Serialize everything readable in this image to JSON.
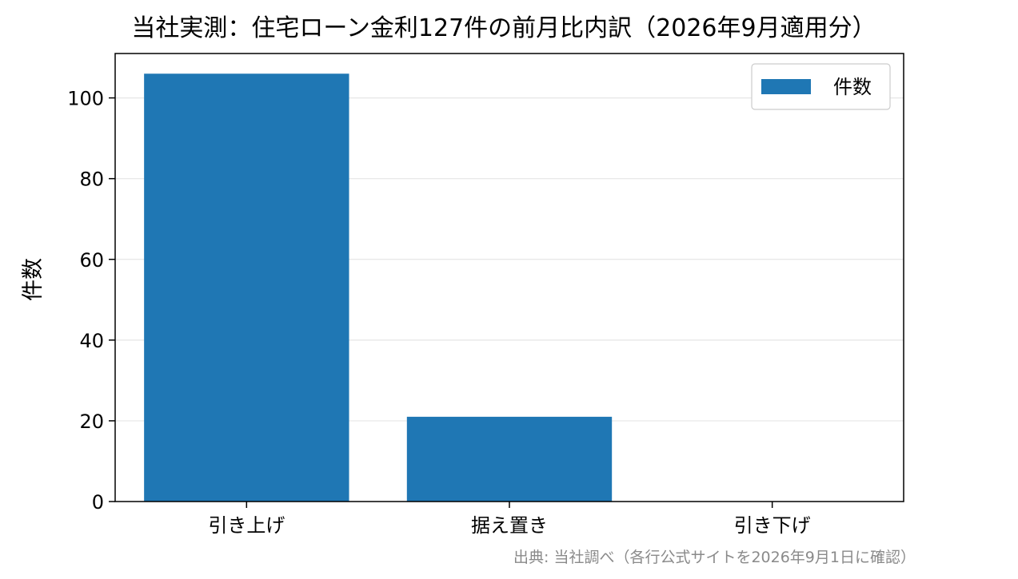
{
  "chart_data": {
    "type": "bar",
    "title": "当社実測：住宅ローン金利127件の前月比内訳（2026年9月適用分）",
    "xlabel": "",
    "ylabel": "件数",
    "categories": [
      "引き上げ",
      "据え置き",
      "引き下げ"
    ],
    "series": [
      {
        "name": "件数",
        "values": [
          106,
          21,
          0
        ],
        "color": "#1f77b4"
      }
    ],
    "ylim": [
      0,
      111
    ],
    "yticks": [
      0,
      20,
      40,
      60,
      80,
      100
    ],
    "grid": "y",
    "legend": {
      "position": "top-right"
    },
    "source": "出典: 当社調べ（各行公式サイトを2026年9月1日に確認）"
  }
}
